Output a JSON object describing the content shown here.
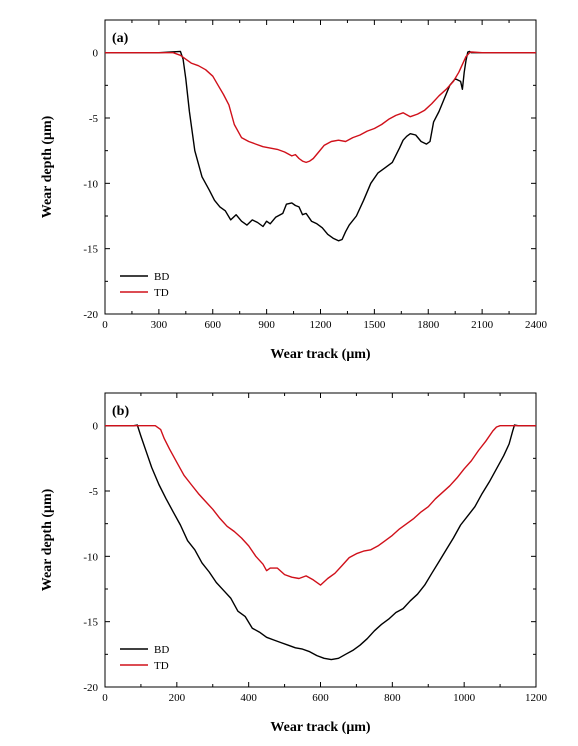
{
  "chart_data": [
    {
      "type": "line",
      "panel_label": "(a)",
      "xlabel": "Wear track (μm)",
      "ylabel": "Wear depth (μm)",
      "xlim": [
        0,
        2400
      ],
      "ylim": [
        -20,
        2.5
      ],
      "xticks": [
        0,
        300,
        600,
        900,
        1200,
        1500,
        1800,
        2100,
        2400
      ],
      "yticks": [
        0,
        -5,
        -10,
        -15,
        -20
      ],
      "legend_position": "bottom-left",
      "colors": {
        "BD": "#000000",
        "TD": "#d0101a"
      },
      "series": [
        {
          "name": "BD",
          "x": [
            0,
            300,
            420,
            435,
            450,
            470,
            500,
            540,
            580,
            610,
            640,
            670,
            700,
            730,
            760,
            790,
            820,
            850,
            880,
            900,
            920,
            950,
            990,
            1010,
            1040,
            1060,
            1080,
            1100,
            1120,
            1150,
            1180,
            1210,
            1240,
            1270,
            1300,
            1320,
            1340,
            1360,
            1400,
            1440,
            1480,
            1520,
            1540,
            1560,
            1600,
            1640,
            1660,
            1680,
            1700,
            1730,
            1760,
            1790,
            1810,
            1830,
            1860,
            1890,
            1920,
            1950,
            1980,
            1990,
            2000,
            2010,
            2020,
            2030,
            2040,
            2100,
            2400
          ],
          "y": [
            0,
            0,
            0.1,
            -0.5,
            -2,
            -4.5,
            -7.5,
            -9.5,
            -10.5,
            -11.3,
            -11.8,
            -12.1,
            -12.8,
            -12.4,
            -12.9,
            -13.2,
            -12.8,
            -13,
            -13.3,
            -12.9,
            -13.1,
            -12.6,
            -12.3,
            -11.6,
            -11.5,
            -11.7,
            -11.8,
            -12.4,
            -12.3,
            -12.9,
            -13.1,
            -13.4,
            -13.9,
            -14.2,
            -14.4,
            -14.3,
            -13.7,
            -13.2,
            -12.5,
            -11.3,
            -10,
            -9.2,
            -9,
            -8.8,
            -8.4,
            -7.3,
            -6.7,
            -6.4,
            -6.2,
            -6.3,
            -6.8,
            -7,
            -6.8,
            -5.3,
            -4.5,
            -3.5,
            -2.5,
            -2,
            -2.2,
            -2.8,
            -1.5,
            -0.6,
            0.05,
            0.1,
            0,
            0,
            0
          ]
        },
        {
          "name": "TD",
          "x": [
            0,
            380,
            420,
            450,
            480,
            520,
            560,
            600,
            630,
            660,
            690,
            720,
            760,
            800,
            840,
            880,
            920,
            960,
            1000,
            1040,
            1060,
            1080,
            1100,
            1120,
            1140,
            1160,
            1190,
            1220,
            1260,
            1300,
            1340,
            1380,
            1420,
            1460,
            1500,
            1540,
            1580,
            1620,
            1660,
            1700,
            1740,
            1780,
            1820,
            1860,
            1900,
            1940,
            1970,
            1990,
            2010,
            2030,
            2040,
            2100,
            2400
          ],
          "y": [
            0,
            0,
            -0.2,
            -0.5,
            -0.8,
            -1,
            -1.3,
            -1.8,
            -2.5,
            -3.2,
            -4,
            -5.5,
            -6.5,
            -6.8,
            -7,
            -7.2,
            -7.3,
            -7.4,
            -7.6,
            -7.9,
            -7.8,
            -8.1,
            -8.3,
            -8.4,
            -8.3,
            -8.1,
            -7.6,
            -7.1,
            -6.8,
            -6.7,
            -6.8,
            -6.5,
            -6.3,
            -6,
            -5.8,
            -5.5,
            -5.1,
            -4.8,
            -4.6,
            -4.9,
            -4.7,
            -4.4,
            -3.9,
            -3.3,
            -2.8,
            -2.2,
            -1.5,
            -0.9,
            -0.3,
            0,
            0.05,
            0,
            0
          ]
        }
      ]
    },
    {
      "type": "line",
      "panel_label": "(b)",
      "xlabel": "Wear track (μm)",
      "ylabel": "Wear depth (μm)",
      "xlim": [
        0,
        1200
      ],
      "ylim": [
        -20,
        2.5
      ],
      "xticks": [
        0,
        200,
        400,
        600,
        800,
        1000,
        1200
      ],
      "yticks": [
        0,
        -5,
        -10,
        -15,
        -20
      ],
      "legend_position": "bottom-left",
      "colors": {
        "BD": "#000000",
        "TD": "#d0101a"
      },
      "series": [
        {
          "name": "BD",
          "x": [
            0,
            80,
            90,
            100,
            115,
            130,
            150,
            170,
            190,
            210,
            230,
            250,
            270,
            290,
            310,
            330,
            350,
            370,
            390,
            410,
            430,
            450,
            470,
            490,
            510,
            530,
            550,
            570,
            590,
            610,
            630,
            650,
            670,
            690,
            710,
            730,
            750,
            770,
            790,
            810,
            830,
            850,
            870,
            890,
            910,
            930,
            950,
            970,
            990,
            1010,
            1030,
            1050,
            1070,
            1090,
            1110,
            1125,
            1135,
            1140,
            1150,
            1200
          ],
          "y": [
            0,
            0,
            0.05,
            -0.8,
            -2,
            -3.2,
            -4.5,
            -5.6,
            -6.6,
            -7.6,
            -8.8,
            -9.5,
            -10.5,
            -11.2,
            -12,
            -12.6,
            -13.2,
            -14.2,
            -14.6,
            -15.5,
            -15.8,
            -16.2,
            -16.4,
            -16.6,
            -16.8,
            -17,
            -17.1,
            -17.3,
            -17.6,
            -17.8,
            -17.9,
            -17.8,
            -17.5,
            -17.2,
            -16.8,
            -16.3,
            -15.7,
            -15.2,
            -14.8,
            -14.3,
            -14,
            -13.4,
            -12.9,
            -12.2,
            -11.3,
            -10.4,
            -9.5,
            -8.6,
            -7.6,
            -6.9,
            -6.2,
            -5.2,
            -4.3,
            -3.3,
            -2.3,
            -1.4,
            -0.4,
            0.05,
            0,
            0
          ]
        },
        {
          "name": "TD",
          "x": [
            0,
            140,
            155,
            165,
            180,
            200,
            220,
            240,
            260,
            280,
            300,
            320,
            340,
            360,
            380,
            400,
            420,
            440,
            450,
            460,
            480,
            500,
            520,
            540,
            560,
            580,
            600,
            620,
            640,
            660,
            680,
            700,
            720,
            740,
            760,
            780,
            800,
            820,
            840,
            860,
            880,
            900,
            920,
            940,
            960,
            980,
            1000,
            1020,
            1040,
            1060,
            1080,
            1090,
            1100,
            1110,
            1200
          ],
          "y": [
            0,
            0,
            -0.3,
            -1,
            -1.8,
            -2.8,
            -3.8,
            -4.5,
            -5.2,
            -5.8,
            -6.4,
            -7.1,
            -7.7,
            -8.1,
            -8.6,
            -9.2,
            -10,
            -10.6,
            -11.1,
            -10.9,
            -10.9,
            -11.4,
            -11.6,
            -11.7,
            -11.5,
            -11.8,
            -12.2,
            -11.7,
            -11.3,
            -10.7,
            -10.1,
            -9.8,
            -9.6,
            -9.5,
            -9.2,
            -8.8,
            -8.4,
            -7.9,
            -7.5,
            -7.1,
            -6.6,
            -6.2,
            -5.6,
            -5.1,
            -4.6,
            -4,
            -3.3,
            -2.7,
            -1.9,
            -1.2,
            -0.4,
            -0.1,
            0,
            0,
            0
          ]
        }
      ]
    }
  ]
}
